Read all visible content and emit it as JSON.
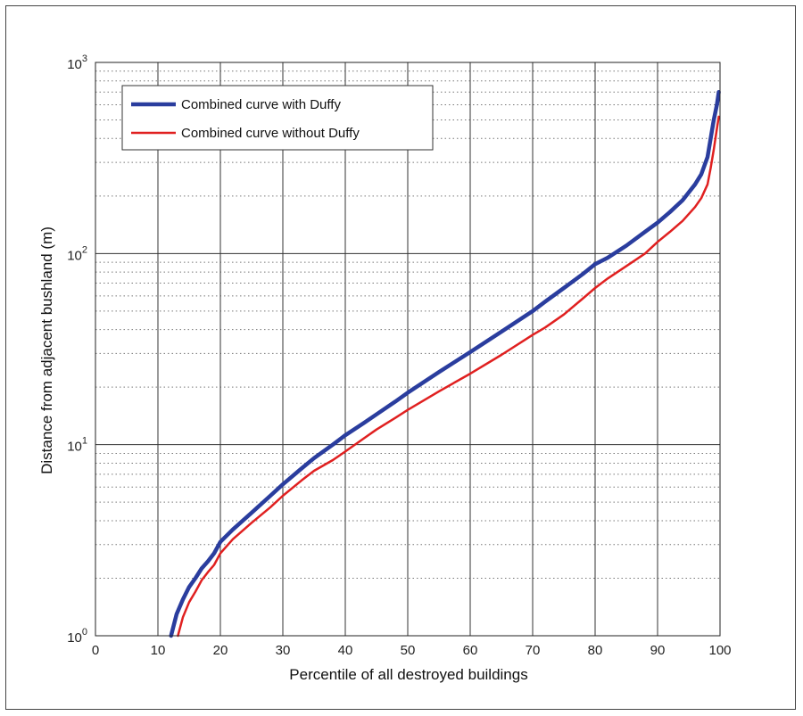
{
  "chart_data": {
    "type": "line",
    "xlabel": "Percentile of all destroyed buildings",
    "ylabel": "Distance from adjacent bushland (m)",
    "xlim": [
      0,
      100
    ],
    "ylim": [
      1,
      1000
    ],
    "yscale": "log",
    "grid": true,
    "legend_position": "top-left",
    "x_ticks": [
      "0",
      "10",
      "20",
      "30",
      "40",
      "50",
      "60",
      "70",
      "80",
      "90",
      "100"
    ],
    "y_ticks": [
      {
        "base": "10",
        "exp": "0",
        "value": 1
      },
      {
        "base": "10",
        "exp": "1",
        "value": 10
      },
      {
        "base": "10",
        "exp": "2",
        "value": 100
      },
      {
        "base": "10",
        "exp": "3",
        "value": 1000
      }
    ],
    "series": [
      {
        "name": "Combined curve with Duffy",
        "color": "#2a3d9e",
        "points": [
          [
            12.1,
            1.0
          ],
          [
            13.0,
            1.3
          ],
          [
            14.0,
            1.55
          ],
          [
            15.0,
            1.8
          ],
          [
            16.0,
            2.0
          ],
          [
            17.0,
            2.25
          ],
          [
            18.0,
            2.45
          ],
          [
            19.0,
            2.7
          ],
          [
            20.0,
            3.1
          ],
          [
            22.0,
            3.6
          ],
          [
            25.0,
            4.4
          ],
          [
            28.0,
            5.4
          ],
          [
            30.0,
            6.2
          ],
          [
            33.0,
            7.5
          ],
          [
            35.0,
            8.5
          ],
          [
            38.0,
            10.0
          ],
          [
            40.0,
            11.2
          ],
          [
            43.0,
            13.0
          ],
          [
            45.0,
            14.4
          ],
          [
            48.0,
            16.8
          ],
          [
            50.0,
            18.7
          ],
          [
            55.0,
            24.0
          ],
          [
            60.0,
            30.5
          ],
          [
            65.0,
            39.0
          ],
          [
            70.0,
            50.0
          ],
          [
            72.0,
            56.0
          ],
          [
            75.0,
            66.0
          ],
          [
            78.0,
            78.0
          ],
          [
            80.0,
            88.0
          ],
          [
            82.0,
            95.0
          ],
          [
            85.0,
            110.0
          ],
          [
            88.0,
            130.0
          ],
          [
            90.0,
            145.0
          ],
          [
            92.0,
            165.0
          ],
          [
            94.0,
            190.0
          ],
          [
            96.0,
            230.0
          ],
          [
            97.0,
            260.0
          ],
          [
            98.0,
            320.0
          ],
          [
            98.5,
            400.0
          ],
          [
            99.0,
            500.0
          ],
          [
            99.5,
            600.0
          ],
          [
            99.8,
            700.0
          ]
        ]
      },
      {
        "name": "Combined curve without Duffy",
        "color": "#e02020",
        "points": [
          [
            13.2,
            1.0
          ],
          [
            14.0,
            1.25
          ],
          [
            15.0,
            1.5
          ],
          [
            16.0,
            1.7
          ],
          [
            17.0,
            1.95
          ],
          [
            18.0,
            2.15
          ],
          [
            19.0,
            2.35
          ],
          [
            20.0,
            2.7
          ],
          [
            22.0,
            3.2
          ],
          [
            25.0,
            3.9
          ],
          [
            28.0,
            4.7
          ],
          [
            30.0,
            5.4
          ],
          [
            33.0,
            6.5
          ],
          [
            35.0,
            7.3
          ],
          [
            38.0,
            8.3
          ],
          [
            40.0,
            9.2
          ],
          [
            43.0,
            10.8
          ],
          [
            45.0,
            12.0
          ],
          [
            48.0,
            13.8
          ],
          [
            50.0,
            15.2
          ],
          [
            55.0,
            19.0
          ],
          [
            60.0,
            23.5
          ],
          [
            65.0,
            29.5
          ],
          [
            70.0,
            37.5
          ],
          [
            72.0,
            41.0
          ],
          [
            75.0,
            48.0
          ],
          [
            78.0,
            58.0
          ],
          [
            80.0,
            66.0
          ],
          [
            82.0,
            74.0
          ],
          [
            85.0,
            86.0
          ],
          [
            88.0,
            100.0
          ],
          [
            90.0,
            115.0
          ],
          [
            92.0,
            130.0
          ],
          [
            94.0,
            148.0
          ],
          [
            96.0,
            175.0
          ],
          [
            97.0,
            195.0
          ],
          [
            98.0,
            230.0
          ],
          [
            98.5,
            280.0
          ],
          [
            99.0,
            350.0
          ],
          [
            99.5,
            450.0
          ],
          [
            99.8,
            520.0
          ]
        ]
      }
    ]
  }
}
